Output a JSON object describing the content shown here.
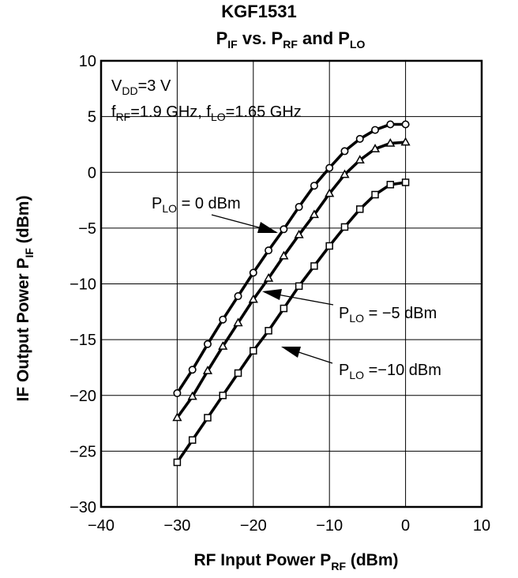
{
  "chart_data": {
    "type": "line",
    "title": "KGF1531",
    "subtitle": {
      "p_if": "P",
      "p_if_sub": "IF",
      "vs": " vs. ",
      "p_rf": "P",
      "p_rf_sub": "RF",
      "and": " and ",
      "p_lo": "P",
      "p_lo_sub": "LO"
    },
    "xlabel": {
      "text": "RF Input Power  P",
      "sub": "RF",
      "unit": "  (dBm)"
    },
    "ylabel": {
      "text": "IF Output Power  P",
      "sub": "IF",
      "unit": "  (dBm)"
    },
    "xlim": [
      -40,
      10
    ],
    "ylim": [
      -30,
      10
    ],
    "xticks": [
      -40,
      -30,
      -20,
      -10,
      0,
      10
    ],
    "xtick_labels": [
      "−40",
      "−30",
      "−20",
      "−10",
      "0",
      "10"
    ],
    "yticks": [
      10,
      5,
      0,
      -5,
      -10,
      -15,
      -20,
      -25,
      -30
    ],
    "ytick_labels": [
      "10",
      "5",
      "0",
      "−5",
      "−10",
      "−15",
      "−20",
      "−25",
      "−30"
    ],
    "grid": true,
    "conditions": {
      "vdd": {
        "main": "V",
        "sub": "DD",
        "rest": "=3 V"
      },
      "freq": {
        "f1": "f",
        "f1_sub": "RF",
        "f1_rest": "=1.9 GHz, ",
        "f2": "f",
        "f2_sub": "LO",
        "f2_rest": "=1.65 GHz"
      }
    },
    "series": [
      {
        "label_main": "P",
        "label_sub": "LO",
        "label_rest": " =   0 dBm",
        "marker": "circle",
        "x": [
          -30,
          -28,
          -26,
          -24,
          -22,
          -20,
          -18,
          -16,
          -14,
          -12,
          -10,
          -8,
          -6,
          -4,
          -2,
          0
        ],
        "y": [
          -19.8,
          -17.7,
          -15.4,
          -13.2,
          -11.1,
          -9.0,
          -7.0,
          -5.1,
          -3.1,
          -1.2,
          0.4,
          1.9,
          3.0,
          3.8,
          4.3,
          4.3
        ]
      },
      {
        "label_main": "P",
        "label_sub": "LO",
        "label_rest": " =  −5 dBm",
        "marker": "triangle",
        "x": [
          -30,
          -28,
          -26,
          -24,
          -22,
          -20,
          -18,
          -16,
          -14,
          -12,
          -10,
          -8,
          -6,
          -4,
          -2,
          0
        ],
        "y": [
          -22.0,
          -20.1,
          -17.8,
          -15.6,
          -13.5,
          -11.4,
          -9.5,
          -7.5,
          -5.6,
          -3.8,
          -1.9,
          -0.2,
          1.1,
          2.1,
          2.6,
          2.7
        ]
      },
      {
        "label_main": "P",
        "label_sub": "LO",
        "label_rest": " =−10 dBm",
        "marker": "square",
        "x": [
          -30,
          -28,
          -26,
          -24,
          -22,
          -20,
          -18,
          -16,
          -14,
          -12,
          -10,
          -8,
          -6,
          -4,
          -2,
          0
        ],
        "y": [
          -26.0,
          -24.0,
          -22.0,
          -20.0,
          -18.0,
          -16.0,
          -14.2,
          -12.2,
          -10.2,
          -8.4,
          -6.6,
          -4.9,
          -3.3,
          -2.0,
          -1.1,
          -0.9
        ]
      }
    ]
  }
}
